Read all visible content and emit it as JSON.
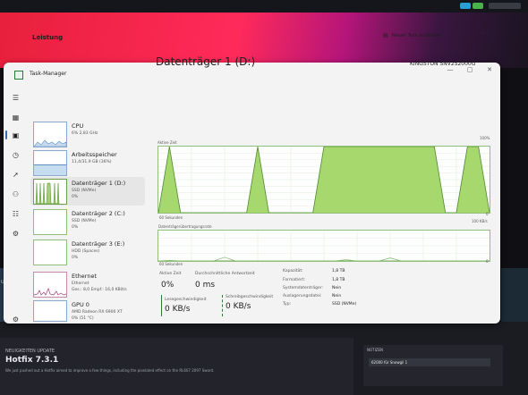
{
  "window": {
    "title": "Task-Manager",
    "controls": [
      "—",
      "▢",
      "✕"
    ]
  },
  "header": {
    "section": "Leistung",
    "run_task": "Neuen Task ausführen",
    "more": "···"
  },
  "devices": [
    {
      "name": "CPU",
      "sub1": "6%  2,83 GHz",
      "sub2": ""
    },
    {
      "name": "Arbeitsspeicher",
      "sub1": "11,4/31,9 GB (36%)",
      "sub2": ""
    },
    {
      "name": "Datenträger 1 (D:)",
      "sub1": "SSD (NVMe)",
      "sub2": "0%"
    },
    {
      "name": "Datenträger 2 (C:)",
      "sub1": "SSD (NVMe)",
      "sub2": "0%"
    },
    {
      "name": "Datenträger 3 (E:)",
      "sub1": "HDD (Spaces)",
      "sub2": "0%"
    },
    {
      "name": "Ethernet",
      "sub1": "Ethernet",
      "sub2": "Ges.: 8,0  Empf.: 16,0 KBit/s"
    },
    {
      "name": "GPU 0",
      "sub1": "AMD Radeon RX 6900 XT",
      "sub2": "0% (51 °C)"
    }
  ],
  "main": {
    "title": "Datenträger 1 (D:)",
    "model": "KINGSTON SNV2S2000G",
    "active_time_label": "Aktive Zeit",
    "active_max": "100%",
    "seconds_label_1": "60 Sekunden",
    "zero_1": "0",
    "transfer_label": "Datenträgerübertragungsrate",
    "transfer_max": "100 KB/s",
    "seconds_label_2": "60 Sekunden",
    "zero_2": "0"
  },
  "stats": {
    "active_time": {
      "label": "Aktive Zeit",
      "value": "0%"
    },
    "avg_response": {
      "label": "Durchschnittliche Antwortzeit",
      "value": "0 ms"
    },
    "read_speed": {
      "label": "Lesegeschwindigkeit",
      "value": "0 KB/s"
    },
    "write_speed": {
      "label": "Schreibgeschwindigkeit",
      "value": "0 KB/s"
    }
  },
  "properties": [
    {
      "k": "Kapazität:",
      "v": "1,8 TB"
    },
    {
      "k": "Formatiert:",
      "v": "1,8 TB"
    },
    {
      "k": "Systemdatenträger:",
      "v": "Nein"
    },
    {
      "k": "Auslagerungsdatei:",
      "v": "Nein"
    },
    {
      "k": "Typ:",
      "v": "SSD (NVMe)"
    }
  ],
  "background": {
    "news_label": "NEUIGKEITEN UPDATE",
    "news_title": "Hotfix 7.3.1",
    "news_text": "We just pushed out a Hotfix aimed to improve a few things, including the pixelated effect on the RL607 2097 Sword.",
    "notify_label": "NOTIZEN",
    "notify_msg": "62000 für Snowgil 1",
    "left_text": "Up"
  },
  "chart_data": [
    {
      "type": "area",
      "title": "Aktive Zeit",
      "xlabel": "60 Sekunden",
      "ylim": [
        0,
        100
      ],
      "x": [
        0,
        2,
        4,
        6,
        8,
        10,
        12,
        14,
        16,
        18,
        20,
        22,
        24,
        26,
        28,
        30,
        32,
        34,
        36,
        38,
        40,
        42,
        44,
        46,
        48,
        50,
        52,
        54,
        56,
        58,
        60
      ],
      "series": [
        {
          "values": [
            0,
            100,
            0,
            0,
            0,
            0,
            0,
            0,
            0,
            100,
            0,
            0,
            0,
            0,
            0,
            100,
            100,
            100,
            100,
            100,
            100,
            100,
            100,
            100,
            100,
            100,
            0,
            0,
            100,
            100,
            0
          ]
        }
      ]
    },
    {
      "type": "line",
      "title": "Datenträgerübertragungsrate",
      "xlabel": "60 Sekunden",
      "ylim": [
        0,
        100
      ],
      "x": [
        0,
        2,
        4,
        6,
        8,
        10,
        12,
        14,
        16,
        18,
        20,
        22,
        24,
        26,
        28,
        30,
        32,
        34,
        36,
        38,
        40,
        42,
        44,
        46,
        48,
        50,
        52,
        54,
        56,
        58,
        60
      ],
      "series": [
        {
          "values": [
            0,
            2,
            0,
            0,
            0,
            0,
            12,
            0,
            0,
            0,
            0,
            0,
            0,
            0,
            0,
            0,
            0,
            4,
            0,
            0,
            0,
            10,
            0,
            0,
            0,
            0,
            0,
            0,
            0,
            0,
            0
          ]
        },
        {
          "values": [
            0,
            0,
            0,
            0,
            0,
            0,
            0,
            0,
            0,
            0,
            0,
            0,
            0,
            0,
            0,
            0,
            0,
            0,
            0,
            0,
            0,
            0,
            0,
            0,
            0,
            0,
            0,
            0,
            0,
            0,
            0
          ]
        }
      ]
    }
  ]
}
